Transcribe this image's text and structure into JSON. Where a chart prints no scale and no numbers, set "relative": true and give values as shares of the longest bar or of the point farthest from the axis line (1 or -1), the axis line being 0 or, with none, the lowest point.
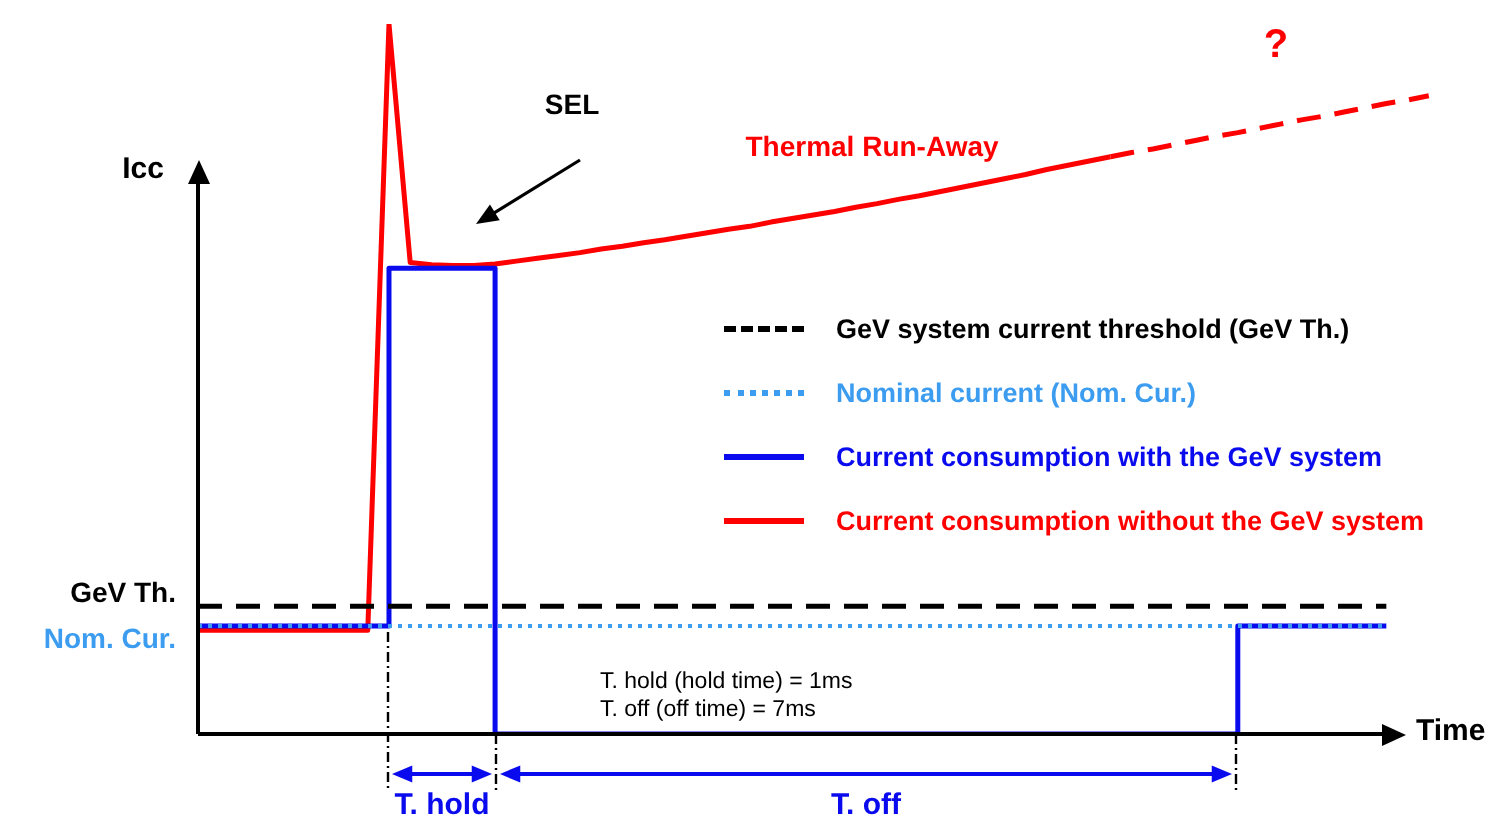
{
  "chart_data": {
    "type": "line",
    "relative": true,
    "xlabel": "Time",
    "ylabel": "Icc",
    "marker": "none",
    "legend": "right",
    "categories": [
      null,
      null,
      null,
      null,
      null,
      null,
      null,
      null,
      null,
      null,
      null,
      null,
      null,
      null,
      null,
      null,
      null,
      null,
      null,
      null,
      null,
      null,
      null,
      null,
      null,
      null,
      null,
      null,
      null,
      null,
      null,
      null,
      null,
      null,
      null,
      null,
      null,
      null,
      null,
      null,
      null,
      null,
      null,
      null,
      null,
      null,
      null,
      null,
      null,
      null,
      null,
      null,
      null,
      null,
      null,
      null,
      null,
      null,
      null,
      null
    ],
    "series": [
      {
        "name": "GeV system current threshold (GeV Th.)",
        "color": "#000000",
        "line_style": "dashed",
        "values": [
          0.18,
          0.18,
          0.18,
          0.18,
          0.18,
          0.18,
          0.18,
          0.18,
          0.18,
          0.18,
          0.18,
          0.18,
          0.18,
          0.18,
          0.18,
          0.18,
          0.18,
          0.18,
          0.18,
          0.18,
          0.18,
          0.18,
          0.18,
          0.18,
          0.18,
          0.18,
          0.18,
          0.18,
          0.18,
          0.18,
          0.18,
          0.18,
          0.18,
          0.18,
          0.18,
          0.18,
          0.18,
          0.18,
          0.18,
          0.18,
          0.18,
          0.18,
          0.18,
          0.18,
          0.18,
          0.18,
          0.18,
          0.18,
          0.18,
          0.18,
          0.18,
          0.18,
          0.18,
          0.18,
          0.18,
          0.18,
          0.18,
          null,
          null,
          null
        ]
      },
      {
        "name": "Nominal current (Nom. Cur.)",
        "color": "#3c9cf0",
        "line_style": "dotted",
        "values": [
          0.152,
          0.152,
          0.152,
          0.152,
          0.152,
          0.152,
          0.152,
          0.152,
          0.152,
          0.152,
          0.152,
          0.152,
          0.152,
          0.152,
          0.152,
          0.152,
          0.152,
          0.152,
          0.152,
          0.152,
          0.152,
          0.152,
          0.152,
          0.152,
          0.152,
          0.152,
          0.152,
          0.152,
          0.152,
          0.152,
          0.152,
          0.152,
          0.152,
          0.152,
          0.152,
          0.152,
          0.152,
          0.152,
          0.152,
          0.152,
          0.152,
          0.152,
          0.152,
          0.152,
          0.152,
          0.152,
          0.152,
          0.152,
          0.152,
          0.152,
          0.152,
          0.152,
          0.152,
          0.152,
          0.152,
          0.152,
          0.152,
          null,
          null,
          null
        ]
      },
      {
        "name": "Current consumption with the GeV system",
        "type": "step",
        "color": "#0a0aee",
        "line_style": "solid",
        "values": [
          0.152,
          0.152,
          0.152,
          0.152,
          0.152,
          0.152,
          0.152,
          0.152,
          0.152,
          0.656,
          0.656,
          0.656,
          0.656,
          0.656,
          0,
          0,
          0,
          0,
          0,
          0,
          0,
          0,
          0,
          0,
          0,
          0,
          0,
          0,
          0,
          0,
          0,
          0,
          0,
          0,
          0,
          0,
          0,
          0,
          0,
          0,
          0,
          0,
          0,
          0,
          0,
          0,
          0,
          0,
          0,
          0.152,
          0.152,
          0.152,
          0.152,
          0.152,
          0.152,
          0.152,
          0.152,
          null,
          null,
          null
        ]
      },
      {
        "name": "Current consumption without the GeV system",
        "color": "#ff0000",
        "line_style": "solid",
        "values": [
          0.146,
          0.146,
          0.146,
          0.146,
          0.146,
          0.146,
          0.146,
          0.146,
          0.146,
          1,
          0.664,
          0.661,
          0.66,
          0.66,
          0.662,
          0.666,
          0.67,
          0.674,
          0.678,
          0.683,
          0.687,
          0.692,
          0.696,
          0.701,
          0.706,
          0.711,
          0.715,
          0.721,
          0.726,
          0.731,
          0.736,
          0.742,
          0.747,
          0.753,
          0.758,
          0.764,
          0.77,
          0.776,
          0.782,
          0.788,
          0.795,
          0.801,
          0.807,
          0.813,
          null,
          null,
          null,
          null,
          null,
          null,
          null,
          null,
          null,
          null,
          null,
          null,
          null,
          null,
          null,
          null
        ]
      },
      {
        "color": "#ff0000",
        "line_style": "dashed",
        "values": [
          null,
          null,
          null,
          null,
          null,
          null,
          null,
          null,
          null,
          null,
          null,
          null,
          null,
          null,
          null,
          null,
          null,
          null,
          null,
          null,
          null,
          null,
          null,
          null,
          null,
          null,
          null,
          null,
          null,
          null,
          null,
          null,
          null,
          null,
          null,
          null,
          null,
          null,
          null,
          null,
          null,
          null,
          null,
          0.813,
          0.819,
          0.824,
          0.83,
          0.836,
          0.842,
          0.847,
          0.853,
          0.859,
          0.865,
          0.87,
          0.876,
          0.882,
          0.888,
          0.893,
          0.899,
          null
        ]
      }
    ],
    "annotations": [
      "SEL",
      "Thermal Run-Away",
      "?",
      "T. hold (hold time) = 1ms",
      "T. off (off time) = 7ms",
      "GeV Th.",
      "Nom. Cur.",
      "T. hold",
      "T. off"
    ]
  }
}
